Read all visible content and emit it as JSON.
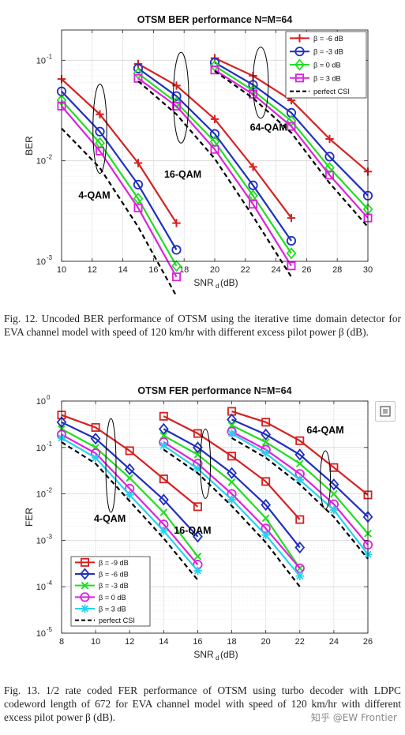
{
  "chart_data": [
    {
      "type": "line",
      "title": "OTSM BER performance N=M=64",
      "xlabel": "SNR",
      "xlabel_sub": "d",
      "xlabel_unit": "(dB)",
      "ylabel": "BER",
      "yscale": "log",
      "xlim": [
        10,
        30
      ],
      "ylim": [
        0.001,
        0.2
      ],
      "xticks": [
        10,
        12,
        14,
        16,
        18,
        20,
        22,
        24,
        26,
        28,
        30
      ],
      "yticks": [
        {
          "base": "10",
          "exp": "-1",
          "value": 0.1
        },
        {
          "base": "10",
          "exp": "-2",
          "value": 0.01
        },
        {
          "base": "10",
          "exp": "-3",
          "value": 0.001
        }
      ],
      "grid": true,
      "legend_position": "top-right",
      "series": [
        {
          "name": "β = -6 dB",
          "color": "#d62020",
          "marker": "plus",
          "groups": [
            {
              "x": [
                10,
                12.5,
                15,
                17.5
              ],
              "y": [
                0.065,
                0.029,
                0.0095,
                0.0024
              ]
            },
            {
              "x": [
                15,
                17.5,
                20,
                22.5,
                25
              ],
              "y": [
                0.092,
                0.056,
                0.026,
                0.0087,
                0.0027
              ]
            },
            {
              "x": [
                20,
                22.5,
                25,
                27.5,
                30
              ],
              "y": [
                0.105,
                0.07,
                0.04,
                0.0165,
                0.0078
              ]
            }
          ]
        },
        {
          "name": "β = -3 dB",
          "color": "#1f2fbf",
          "marker": "circle",
          "groups": [
            {
              "x": [
                10,
                12.5,
                15,
                17.5
              ],
              "y": [
                0.049,
                0.0195,
                0.0058,
                0.0013
              ]
            },
            {
              "x": [
                15,
                17.5,
                20,
                22.5,
                25
              ],
              "y": [
                0.083,
                0.044,
                0.0185,
                0.0057,
                0.0016
              ]
            },
            {
              "x": [
                20,
                22.5,
                25,
                27.5,
                30
              ],
              "y": [
                0.095,
                0.057,
                0.03,
                0.011,
                0.0045
              ]
            }
          ]
        },
        {
          "name": "β = 0 dB",
          "color": "#22dd22",
          "marker": "diamond",
          "groups": [
            {
              "x": [
                10,
                12.5,
                15,
                17.5
              ],
              "y": [
                0.04,
                0.015,
                0.0042,
                0.0009
              ]
            },
            {
              "x": [
                15,
                17.5,
                20,
                22.5,
                25
              ],
              "y": [
                0.074,
                0.038,
                0.0155,
                0.0045,
                0.0012
              ]
            },
            {
              "x": [
                20,
                22.5,
                25,
                27.5,
                30
              ],
              "y": [
                0.088,
                0.05,
                0.025,
                0.0085,
                0.0033
              ]
            }
          ]
        },
        {
          "name": "β = 3 dB",
          "color": "#dd22dd",
          "marker": "square",
          "groups": [
            {
              "x": [
                10,
                12.5,
                15,
                17.5
              ],
              "y": [
                0.035,
                0.0125,
                0.0034,
                0.0007
              ]
            },
            {
              "x": [
                15,
                17.5,
                20,
                22.5,
                25
              ],
              "y": [
                0.066,
                0.035,
                0.013,
                0.0037,
                0.0009
              ]
            },
            {
              "x": [
                20,
                22.5,
                25,
                27.5,
                30
              ],
              "y": [
                0.08,
                0.046,
                0.022,
                0.0072,
                0.0027
              ]
            }
          ]
        },
        {
          "name": "perfect CSI",
          "color": "#000000",
          "marker": "none",
          "dashed": true,
          "groups": [
            {
              "x": [
                10,
                12.5,
                15,
                17.5
              ],
              "y": [
                0.021,
                0.0085,
                0.0022,
                0.00045
              ]
            },
            {
              "x": [
                15,
                17.5,
                20,
                22.5,
                25
              ],
              "y": [
                0.062,
                0.029,
                0.0105,
                0.0028,
                0.0007
              ]
            },
            {
              "x": [
                20,
                22.5,
                25,
                27.5,
                30
              ],
              "y": [
                0.078,
                0.042,
                0.019,
                0.006,
                0.0022
              ]
            }
          ]
        }
      ],
      "annotations": [
        {
          "text": "4-QAM",
          "x": 11.1,
          "y": 0.0042
        },
        {
          "text": "16-QAM",
          "x": 16.7,
          "y": 0.0068
        },
        {
          "text": "64-QAM",
          "x": 22.3,
          "y": 0.02
        }
      ],
      "ellipses": [
        {
          "cx": 12.5,
          "cy": 0.021,
          "rx": 0.45,
          "ytop": 0.058,
          "ybot": 0.0075
        },
        {
          "cx": 17.8,
          "cy": 0.042,
          "rx": 0.5,
          "ytop": 0.12,
          "ybot": 0.015
        },
        {
          "cx": 23.0,
          "cy": 0.056,
          "rx": 0.5,
          "ytop": 0.135,
          "ybot": 0.0265
        }
      ]
    },
    {
      "type": "line",
      "title": "OTSM FER performance N=M=64",
      "xlabel": "SNR",
      "xlabel_sub": "d",
      "xlabel_unit": "(dB)",
      "ylabel": "FER",
      "yscale": "log",
      "xlim": [
        8,
        26
      ],
      "ylim": [
        1e-05,
        1
      ],
      "xticks": [
        8,
        10,
        12,
        14,
        16,
        18,
        20,
        22,
        24,
        26
      ],
      "yticks": [
        {
          "base": "10",
          "exp": "0",
          "value": 1
        },
        {
          "base": "10",
          "exp": "-1",
          "value": 0.1
        },
        {
          "base": "10",
          "exp": "-2",
          "value": 0.01
        },
        {
          "base": "10",
          "exp": "-3",
          "value": 0.001
        },
        {
          "base": "10",
          "exp": "-4",
          "value": 0.0001
        },
        {
          "base": "10",
          "exp": "-5",
          "value": 1e-05
        }
      ],
      "grid": true,
      "legend_position": "bottom-left",
      "series": [
        {
          "name": "β = -9 dB",
          "color": "#d62020",
          "marker": "square",
          "groups": [
            {
              "x": [
                8,
                10,
                12,
                14,
                16
              ],
              "y": [
                0.5,
                0.27,
                0.085,
                0.021,
                0.0053
              ]
            },
            {
              "x": [
                14,
                16,
                18,
                20,
                22
              ],
              "y": [
                0.47,
                0.2,
                0.065,
                0.0185,
                0.0028
              ]
            },
            {
              "x": [
                18,
                20,
                22,
                24,
                26
              ],
              "y": [
                0.6,
                0.35,
                0.14,
                0.037,
                0.0095
              ]
            }
          ]
        },
        {
          "name": "β = -6 dB",
          "color": "#1f2fbf",
          "marker": "diamond",
          "groups": [
            {
              "x": [
                8,
                10,
                12,
                14,
                16
              ],
              "y": [
                0.35,
                0.155,
                0.034,
                0.0075,
                0.0012
              ]
            },
            {
              "x": [
                14,
                16,
                18,
                20,
                22
              ],
              "y": [
                0.25,
                0.1,
                0.028,
                0.0058,
                0.0007
              ]
            },
            {
              "x": [
                18,
                20,
                22,
                24,
                26
              ],
              "y": [
                0.4,
                0.19,
                0.07,
                0.016,
                0.0032
              ]
            }
          ]
        },
        {
          "name": "β = -3 dB",
          "color": "#22dd22",
          "marker": "x",
          "groups": [
            {
              "x": [
                8,
                10,
                12,
                14,
                16
              ],
              "y": [
                0.25,
                0.1,
                0.022,
                0.004,
                0.00045
              ]
            },
            {
              "x": [
                14,
                16,
                18,
                20,
                22
              ],
              "y": [
                0.18,
                0.07,
                0.018,
                0.003,
                0.00025
              ]
            },
            {
              "x": [
                18,
                20,
                22,
                24,
                26
              ],
              "y": [
                0.3,
                0.13,
                0.045,
                0.01,
                0.0014
              ]
            }
          ]
        },
        {
          "name": "β = 0 dB",
          "color": "#dd22dd",
          "marker": "circle",
          "groups": [
            {
              "x": [
                8,
                10,
                12,
                14,
                16
              ],
              "y": [
                0.19,
                0.075,
                0.013,
                0.0022,
                0.0003
              ]
            },
            {
              "x": [
                14,
                16,
                18,
                20,
                22
              ],
              "y": [
                0.13,
                0.045,
                0.01,
                0.0018,
                0.00025
              ]
            },
            {
              "x": [
                18,
                20,
                22,
                24,
                26
              ],
              "y": [
                0.22,
                0.09,
                0.027,
                0.006,
                0.0008
              ]
            }
          ]
        },
        {
          "name": "β = 3 dB",
          "color": "#22d4ee",
          "marker": "star",
          "groups": [
            {
              "x": [
                8,
                10,
                12,
                14,
                16
              ],
              "y": [
                0.16,
                0.06,
                0.0095,
                0.0016,
                0.00022
              ]
            },
            {
              "x": [
                14,
                16,
                18,
                20,
                22
              ],
              "y": [
                0.11,
                0.035,
                0.0075,
                0.0013,
                0.00017
              ]
            },
            {
              "x": [
                18,
                20,
                22,
                24,
                26
              ],
              "y": [
                0.2,
                0.075,
                0.02,
                0.0045,
                0.0005
              ]
            }
          ]
        },
        {
          "name": "perfect CSI",
          "color": "#000000",
          "marker": "none",
          "dashed": true,
          "groups": [
            {
              "x": [
                8,
                10,
                12,
                14,
                16
              ],
              "y": [
                0.13,
                0.045,
                0.007,
                0.0011,
                0.00014
              ]
            },
            {
              "x": [
                14,
                16,
                18,
                20,
                22
              ],
              "y": [
                0.09,
                0.028,
                0.0055,
                0.0009,
                0.0001
              ]
            },
            {
              "x": [
                18,
                20,
                22,
                24,
                26
              ],
              "y": [
                0.16,
                0.06,
                0.016,
                0.0032,
                0.0004
              ]
            }
          ]
        }
      ],
      "annotations": [
        {
          "text": "4-QAM",
          "x": 9.9,
          "y": 0.0025
        },
        {
          "text": "16-QAM",
          "x": 14.6,
          "y": 0.0014
        },
        {
          "text": "64-QAM",
          "x": 22.4,
          "y": 0.2
        }
      ],
      "ellipses": [
        {
          "cx": 10.9,
          "cy": 0.04,
          "rx": 0.3,
          "ytop": 0.42,
          "ybot": 0.004
        },
        {
          "cx": 16.45,
          "cy": 0.045,
          "rx": 0.3,
          "ytop": 0.25,
          "ybot": 0.008
        },
        {
          "cx": 23.5,
          "cy": 0.02,
          "rx": 0.3,
          "ytop": 0.085,
          "ybot": 0.0047
        }
      ]
    }
  ],
  "captions": {
    "fig12": "Fig. 12.   Uncoded BER performance of OTSM using the iterative time domain detector for EVA channel model with speed of 120 km/hr with different excess pilot power β (dB).",
    "fig13": "Fig. 13.    1/2 rate coded FER performance of OTSM using turbo decoder with LDPC codeword length of 672 for EVA channel model with speed of 120 km/hr with different excess pilot power β (dB)."
  },
  "watermark": "知乎 @EW Frontier",
  "zoom_icon": "zoom-icon"
}
